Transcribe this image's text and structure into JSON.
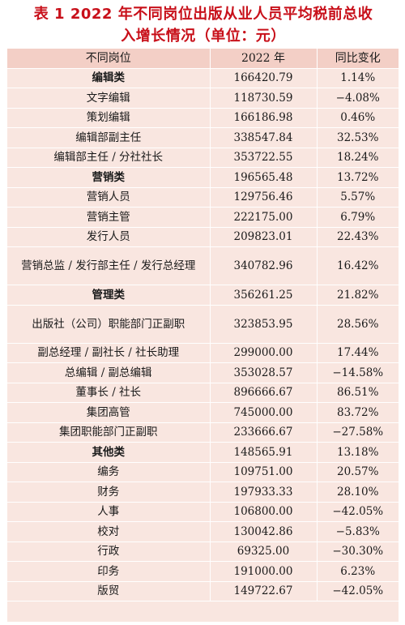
{
  "title": {
    "line1": "表 1 2022 年不同岗位出版从业人员平均税前总收",
    "line2": "入增长情况（单位：元）"
  },
  "table": {
    "headers": [
      "不同岗位",
      "2022 年",
      "同比变化"
    ],
    "rows": [
      {
        "post": "编辑类",
        "value": "166420.79",
        "change": "1.14%",
        "category": true
      },
      {
        "post": "文字编辑",
        "value": "118730.59",
        "change": "−4.08%"
      },
      {
        "post": "策划编辑",
        "value": "166186.98",
        "change": "0.46%"
      },
      {
        "post": "编辑部副主任",
        "value": "338547.84",
        "change": "32.53%"
      },
      {
        "post": "编辑部主任 / 分社社长",
        "value": "353722.55",
        "change": "18.24%"
      },
      {
        "post": "营销类",
        "value": "196565.48",
        "change": "13.72%",
        "category": true
      },
      {
        "post": "营销人员",
        "value": "129756.46",
        "change": "5.57%"
      },
      {
        "post": "营销主管",
        "value": "222175.00",
        "change": "6.79%"
      },
      {
        "post": "发行人员",
        "value": "209823.01",
        "change": "22.43%"
      },
      {
        "post": "营销总监 / 发行部主任 / 发行总经理",
        "value": "340782.96",
        "change": "16.42%",
        "multi": true
      },
      {
        "post": "管理类",
        "value": "356261.25",
        "change": "21.82%",
        "category": true
      },
      {
        "post": "出版社（公司）职能部门正副职",
        "value": "323853.95",
        "change": "28.56%",
        "multi": true
      },
      {
        "post": "副总经理 / 副社长 / 社长助理",
        "value": "299000.00",
        "change": "17.44%"
      },
      {
        "post": "总编辑 / 副总编辑",
        "value": "353028.57",
        "change": "−14.58%"
      },
      {
        "post": "董事长 / 社长",
        "value": "896666.67",
        "change": "86.51%"
      },
      {
        "post": "集团高管",
        "value": "745000.00",
        "change": "83.72%"
      },
      {
        "post": "集团职能部门正副职",
        "value": "233666.67",
        "change": "−27.58%"
      },
      {
        "post": "其他类",
        "value": "148565.91",
        "change": "13.18%",
        "category": true
      },
      {
        "post": "编务",
        "value": "109751.00",
        "change": "20.57%"
      },
      {
        "post": "财务",
        "value": "197933.33",
        "change": "28.10%"
      },
      {
        "post": "人事",
        "value": "106800.00",
        "change": "−42.05%"
      },
      {
        "post": "校对",
        "value": "130042.86",
        "change": "−5.83%"
      },
      {
        "post": "行政",
        "value": "69325.00",
        "change": "−30.30%"
      },
      {
        "post": "印务",
        "value": "191000.00",
        "change": "6.23%"
      },
      {
        "post": "版贸",
        "value": "149722.67",
        "change": "−42.05%"
      }
    ]
  }
}
